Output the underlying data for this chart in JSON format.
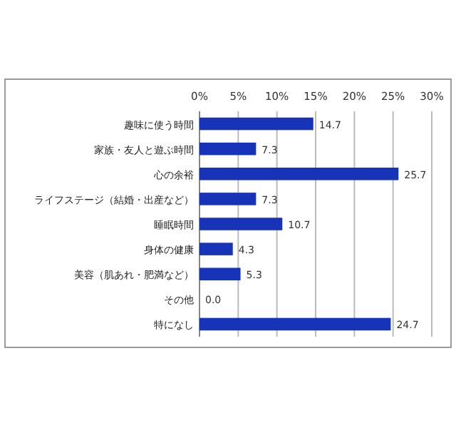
{
  "chart_data": {
    "type": "bar",
    "orientation": "horizontal",
    "categories": [
      "趣味に使う時間",
      "家族・友人と遊ぶ時間",
      "心の余裕",
      "ライフステージ（結婚・出産など）",
      "睡眠時間",
      "身体の健康",
      "美容（肌あれ・肥満など）",
      "その他",
      "特になし"
    ],
    "values": [
      14.7,
      7.3,
      25.7,
      7.3,
      10.7,
      4.3,
      5.3,
      0.0,
      24.7
    ],
    "value_labels": [
      "14.7",
      "7.3",
      "25.7",
      "7.3",
      "10.7",
      "4.3",
      "5.3",
      "0.0",
      "24.7"
    ],
    "color": "#1733b8",
    "xlim": [
      0,
      30
    ],
    "xticks": [
      {
        "value": 0,
        "label": "0%"
      },
      {
        "value": 5,
        "label": "5%"
      },
      {
        "value": 10,
        "label": "10%"
      },
      {
        "value": 15,
        "label": "15%"
      },
      {
        "value": 20,
        "label": "20%"
      },
      {
        "value": 25,
        "label": "25%"
      },
      {
        "value": 30,
        "label": "30%"
      }
    ],
    "grid": "x"
  }
}
